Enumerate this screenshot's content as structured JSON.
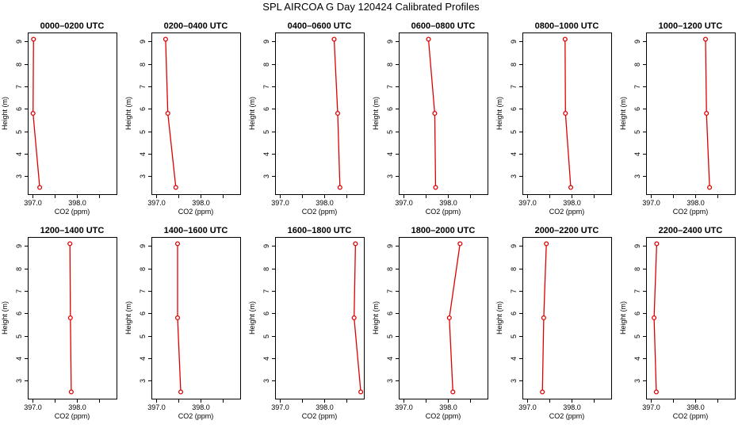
{
  "title": "SPL AIRCOA G  Day 120424  Calibrated Profiles",
  "colors": {
    "profile": "#e00000",
    "axis": "#000000",
    "background": "#ffffff"
  },
  "chart_data": [
    {
      "type": "line",
      "title": "0000–0200 UTC",
      "xlabel": "CO2 (ppm)",
      "ylabel": "Height (m)",
      "xlim": [
        396.9,
        398.9
      ],
      "ylim": [
        2.2,
        9.4
      ],
      "xticks": [
        397.0,
        397.5,
        398.0,
        398.5
      ],
      "xtick_labels": [
        "397.0",
        "",
        "398.0",
        ""
      ],
      "yticks": [
        3,
        4,
        5,
        6,
        7,
        8,
        9
      ],
      "ytick_labels": [
        "3",
        "4",
        "5",
        "6",
        "7",
        "8",
        "9"
      ],
      "series": [
        {
          "x": [
            397.17,
            397.02,
            397.03
          ],
          "y": [
            2.5,
            5.8,
            9.1
          ]
        }
      ]
    },
    {
      "type": "line",
      "title": "0200–0400 UTC",
      "xlabel": "CO2 (ppm)",
      "ylabel": "Height (m)",
      "xlim": [
        396.9,
        398.9
      ],
      "ylim": [
        2.2,
        9.4
      ],
      "xticks": [
        397.0,
        397.5,
        398.0,
        398.5
      ],
      "xtick_labels": [
        "397.0",
        "",
        "398.0",
        ""
      ],
      "yticks": [
        3,
        4,
        5,
        6,
        7,
        8,
        9
      ],
      "ytick_labels": [
        "3",
        "4",
        "5",
        "6",
        "7",
        "8",
        "9"
      ],
      "series": [
        {
          "x": [
            397.45,
            397.27,
            397.22
          ],
          "y": [
            2.5,
            5.8,
            9.1
          ]
        }
      ]
    },
    {
      "type": "line",
      "title": "0400–0600 UTC",
      "xlabel": "CO2 (ppm)",
      "ylabel": "Height (m)",
      "xlim": [
        396.9,
        398.9
      ],
      "ylim": [
        2.2,
        9.4
      ],
      "xticks": [
        397.0,
        397.5,
        398.0,
        398.5
      ],
      "xtick_labels": [
        "397.0",
        "",
        "398.0",
        ""
      ],
      "yticks": [
        3,
        4,
        5,
        6,
        7,
        8,
        9
      ],
      "ytick_labels": [
        "3",
        "4",
        "5",
        "6",
        "7",
        "8",
        "9"
      ],
      "series": [
        {
          "x": [
            398.36,
            398.31,
            398.23
          ],
          "y": [
            2.5,
            5.8,
            9.1
          ]
        }
      ]
    },
    {
      "type": "line",
      "title": "0600–0800 UTC",
      "xlabel": "CO2 (ppm)",
      "ylabel": "Height (m)",
      "xlim": [
        396.9,
        398.9
      ],
      "ylim": [
        2.2,
        9.4
      ],
      "xticks": [
        397.0,
        397.5,
        398.0,
        398.5
      ],
      "xtick_labels": [
        "397.0",
        "",
        "398.0",
        ""
      ],
      "yticks": [
        3,
        4,
        5,
        6,
        7,
        8,
        9
      ],
      "ytick_labels": [
        "3",
        "4",
        "5",
        "6",
        "7",
        "8",
        "9"
      ],
      "series": [
        {
          "x": [
            397.73,
            397.71,
            397.57
          ],
          "y": [
            2.5,
            5.8,
            9.1
          ]
        }
      ]
    },
    {
      "type": "line",
      "title": "0800–1000 UTC",
      "xlabel": "CO2 (ppm)",
      "ylabel": "Height (m)",
      "xlim": [
        396.9,
        398.9
      ],
      "ylim": [
        2.2,
        9.4
      ],
      "xticks": [
        397.0,
        397.5,
        398.0,
        398.5
      ],
      "xtick_labels": [
        "397.0",
        "",
        "398.0",
        ""
      ],
      "yticks": [
        3,
        4,
        5,
        6,
        7,
        8,
        9
      ],
      "ytick_labels": [
        "3",
        "4",
        "5",
        "6",
        "7",
        "8",
        "9"
      ],
      "series": [
        {
          "x": [
            397.99,
            397.87,
            397.86
          ],
          "y": [
            2.5,
            5.8,
            9.1
          ]
        }
      ]
    },
    {
      "type": "line",
      "title": "1000–1200 UTC",
      "xlabel": "CO2 (ppm)",
      "ylabel": "Height (m)",
      "xlim": [
        396.9,
        398.9
      ],
      "ylim": [
        2.2,
        9.4
      ],
      "xticks": [
        397.0,
        397.5,
        398.0,
        398.5
      ],
      "xtick_labels": [
        "397.0",
        "",
        "398.0",
        ""
      ],
      "yticks": [
        3,
        4,
        5,
        6,
        7,
        8,
        9
      ],
      "ytick_labels": [
        "3",
        "4",
        "5",
        "6",
        "7",
        "8",
        "9"
      ],
      "series": [
        {
          "x": [
            398.33,
            398.26,
            398.24
          ],
          "y": [
            2.5,
            5.8,
            9.1
          ]
        }
      ]
    },
    {
      "type": "line",
      "title": "1200–1400 UTC",
      "xlabel": "CO2 (ppm)",
      "ylabel": "Height (m)",
      "xlim": [
        396.9,
        398.9
      ],
      "ylim": [
        2.2,
        9.4
      ],
      "xticks": [
        397.0,
        397.5,
        398.0,
        398.5
      ],
      "xtick_labels": [
        "397.0",
        "",
        "398.0",
        ""
      ],
      "yticks": [
        3,
        4,
        5,
        6,
        7,
        8,
        9
      ],
      "ytick_labels": [
        "3",
        "4",
        "5",
        "6",
        "7",
        "8",
        "9"
      ],
      "series": [
        {
          "x": [
            397.88,
            397.86,
            397.85
          ],
          "y": [
            2.5,
            5.8,
            9.1
          ]
        }
      ]
    },
    {
      "type": "line",
      "title": "1400–1600 UTC",
      "xlabel": "CO2 (ppm)",
      "ylabel": "Height (m)",
      "xlim": [
        396.9,
        398.9
      ],
      "ylim": [
        2.2,
        9.4
      ],
      "xticks": [
        397.0,
        397.5,
        398.0,
        398.5
      ],
      "xtick_labels": [
        "397.0",
        "",
        "398.0",
        ""
      ],
      "yticks": [
        3,
        4,
        5,
        6,
        7,
        8,
        9
      ],
      "ytick_labels": [
        "3",
        "4",
        "5",
        "6",
        "7",
        "8",
        "9"
      ],
      "series": [
        {
          "x": [
            397.56,
            397.49,
            397.49
          ],
          "y": [
            2.5,
            5.8,
            9.1
          ]
        }
      ]
    },
    {
      "type": "line",
      "title": "1600–1800 UTC",
      "xlabel": "CO2 (ppm)",
      "ylabel": "Height (m)",
      "xlim": [
        396.9,
        398.9
      ],
      "ylim": [
        2.2,
        9.4
      ],
      "xticks": [
        397.0,
        397.5,
        398.0,
        398.5
      ],
      "xtick_labels": [
        "397.0",
        "",
        "398.0",
        ""
      ],
      "yticks": [
        3,
        4,
        5,
        6,
        7,
        8,
        9
      ],
      "ytick_labels": [
        "3",
        "4",
        "5",
        "6",
        "7",
        "8",
        "9"
      ],
      "series": [
        {
          "x": [
            398.83,
            398.68,
            398.71
          ],
          "y": [
            2.5,
            5.8,
            9.1
          ]
        }
      ]
    },
    {
      "type": "line",
      "title": "1800–2000 UTC",
      "xlabel": "CO2 (ppm)",
      "ylabel": "Height (m)",
      "xlim": [
        396.9,
        398.9
      ],
      "ylim": [
        2.2,
        9.4
      ],
      "xticks": [
        397.0,
        397.5,
        398.0,
        398.5
      ],
      "xtick_labels": [
        "397.0",
        "",
        "398.0",
        ""
      ],
      "yticks": [
        3,
        4,
        5,
        6,
        7,
        8,
        9
      ],
      "ytick_labels": [
        "3",
        "4",
        "5",
        "6",
        "7",
        "8",
        "9"
      ],
      "series": [
        {
          "x": [
            398.12,
            398.04,
            398.28
          ],
          "y": [
            2.5,
            5.8,
            9.1
          ]
        }
      ]
    },
    {
      "type": "line",
      "title": "2000–2200 UTC",
      "xlabel": "CO2 (ppm)",
      "ylabel": "Height (m)",
      "xlim": [
        396.9,
        398.9
      ],
      "ylim": [
        2.2,
        9.4
      ],
      "xticks": [
        397.0,
        397.5,
        398.0,
        398.5
      ],
      "xtick_labels": [
        "397.0",
        "",
        "398.0",
        ""
      ],
      "yticks": [
        3,
        4,
        5,
        6,
        7,
        8,
        9
      ],
      "ytick_labels": [
        "3",
        "4",
        "5",
        "6",
        "7",
        "8",
        "9"
      ],
      "series": [
        {
          "x": [
            397.35,
            397.38,
            397.44
          ],
          "y": [
            2.5,
            5.8,
            9.1
          ]
        }
      ]
    },
    {
      "type": "line",
      "title": "2200–2400 UTC",
      "xlabel": "CO2 (ppm)",
      "ylabel": "Height (m)",
      "xlim": [
        396.9,
        398.9
      ],
      "ylim": [
        2.2,
        9.4
      ],
      "xticks": [
        397.0,
        397.5,
        398.0,
        398.5
      ],
      "xtick_labels": [
        "397.0",
        "",
        "398.0",
        ""
      ],
      "yticks": [
        3,
        4,
        5,
        6,
        7,
        8,
        9
      ],
      "ytick_labels": [
        "3",
        "4",
        "5",
        "6",
        "7",
        "8",
        "9"
      ],
      "series": [
        {
          "x": [
            397.13,
            397.08,
            397.14
          ],
          "y": [
            2.5,
            5.8,
            9.1
          ]
        }
      ]
    }
  ]
}
